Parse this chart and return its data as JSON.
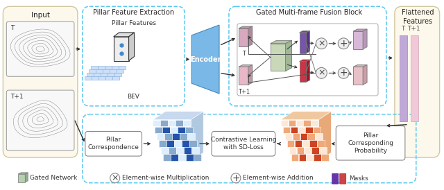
{
  "bg_color": "#ffffff",
  "input_panel_color": "#fdf8ec",
  "input_panel_edge": "#d0c8a0",
  "dashed_color": "#5bc8f0",
  "fusion_inner_bg": "#f0f8ff",
  "title_input": "Input",
  "title_pillar": "Pillar Feature Extraction",
  "title_fusion": "Gated Multi-frame Fusion Block",
  "title_flat": "Flattened\nFeatures",
  "label_T": "T",
  "label_T1": "T+1",
  "label_BEV": "BEV",
  "label_encoder": "Encoder",
  "label_pillar_feat": "Pillar Features",
  "label_pillar_corr": "Pillar\nCorrespondence",
  "label_contrastive": "Contrastive Learning\nwith SD-Loss",
  "label_pillar_prob": "Pillar\nCorresponding\nProbability",
  "legend_gated": "Gated Network",
  "legend_mult": "Element-wise Multiplication",
  "legend_add": "Element-wise Addition",
  "legend_masks": "Masks",
  "figsize": [
    6.4,
    2.74
  ],
  "dpi": 100
}
